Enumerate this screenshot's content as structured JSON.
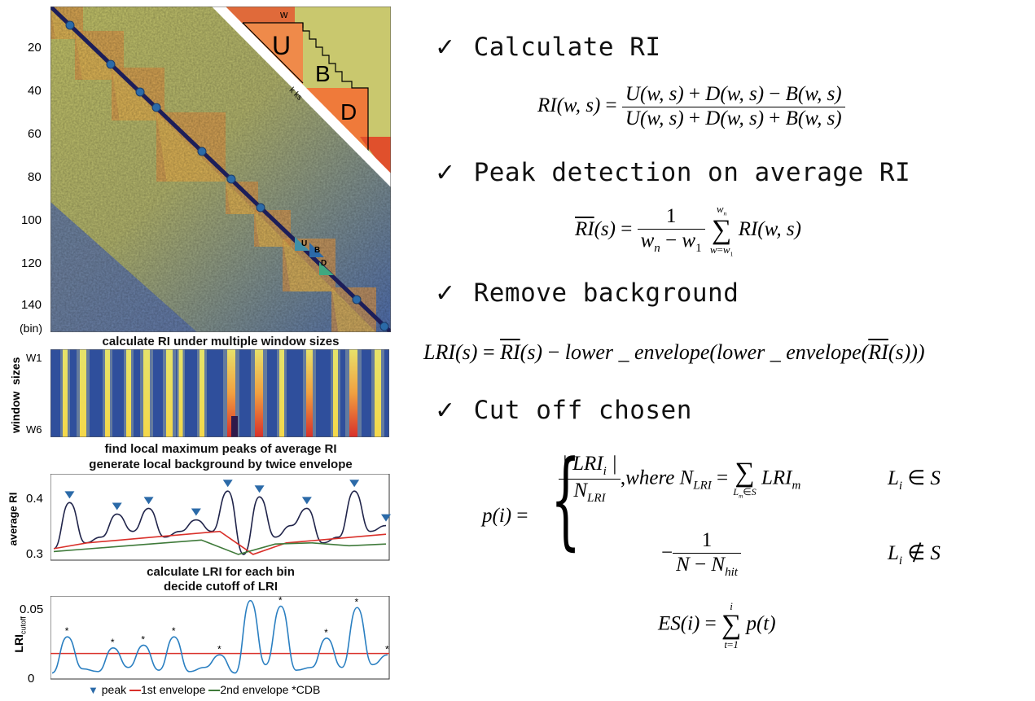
{
  "heatmap": {
    "y_ticks": [
      "20",
      "40",
      "60",
      "80",
      "100",
      "120",
      "140"
    ],
    "y_unit": "(bin)",
    "inset_labels": {
      "w": "w",
      "U": "U",
      "B": "B",
      "D": "D",
      "ks": "k ks"
    },
    "small_labels": {
      "U": "U",
      "B": "B",
      "D": "D"
    }
  },
  "ri_panel": {
    "title": "calculate RI under multiple window sizes",
    "ylabel": "window  sizes",
    "w1": "W1",
    "w6": "W6"
  },
  "avg_panel": {
    "title_line1": "find local maximum peaks of average RI",
    "title_line2": "generate local background by twice envelope",
    "ylabel": "average RI",
    "ticks": [
      "0.4",
      "0.3"
    ]
  },
  "lri_panel": {
    "title_line1": "calculate LRI for each bin",
    "title_line2": "decide cutoff of  LRI",
    "ylabel_main": "LRI",
    "ylabel_sub": "cutoff",
    "ticks": [
      "0.05",
      "0"
    ]
  },
  "legend": {
    "peak": "peak",
    "env1": "1st envelope",
    "env2": "2nd envelope",
    "cdb": "CDB"
  },
  "steps": {
    "s1": "Calculate RI",
    "s2": "Peak detection on average RI",
    "s3": "Remove background",
    "s4": "Cut off chosen"
  },
  "colors": {
    "heat_low": "#5b77b8",
    "heat_mid": "#e6dc5a",
    "heat_high": "#e0502c",
    "diag": "#1c1e5a",
    "marker": "#2b6aa8",
    "env1": "#d9302a",
    "env2": "#3f7a3a",
    "avg_line": "#20244a",
    "lri_line": "#2a7fc1"
  },
  "chart_data": [
    {
      "type": "line",
      "series": [
        {
          "values": [
            0.31,
            0.39,
            0.32,
            0.33,
            0.37,
            0.34,
            0.38,
            0.33,
            0.34,
            0.36,
            0.34,
            0.41,
            0.3,
            0.4,
            0.33,
            0.35,
            0.38,
            0.32,
            0.33,
            0.41,
            0.34,
            0.35
          ]
        }
      ],
      "ylabel": "average RI",
      "ylim": [
        0.29,
        0.44
      ]
    },
    {
      "type": "line",
      "series": [
        {
          "values": [
            0.002,
            0.028,
            0.005,
            0.003,
            0.02,
            0.006,
            0.022,
            0.004,
            0.028,
            0.003,
            0.006,
            0.015,
            0.002,
            0.054,
            0.008,
            0.05,
            0.004,
            0.006,
            0.027,
            0.006,
            0.049,
            0.008,
            0.015
          ]
        }
      ],
      "ylabel": "LRI",
      "ylim": [
        0,
        0.055
      ]
    }
  ]
}
